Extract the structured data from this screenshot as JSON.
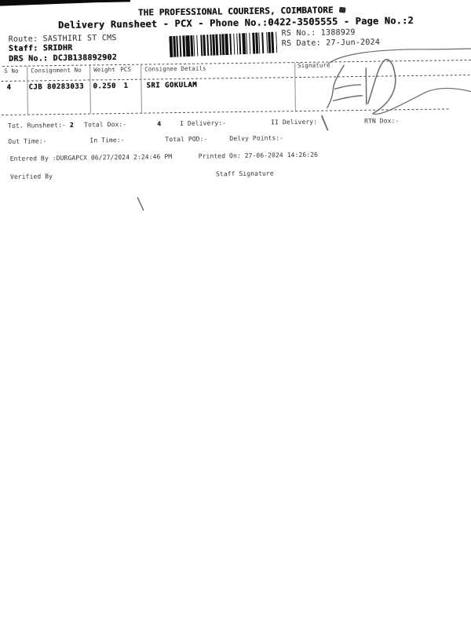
{
  "document": {
    "company": "THE PROFESSIONAL COURIERS, COIMBATORE",
    "subtitle": "Delivery Runsheet - PCX - Phone No.:0422-3505555 - Page No.:2"
  },
  "meta": {
    "route": "Route: SASTHIRI ST CMS",
    "staff": "Staff: SRIDHR",
    "drs_no": "DRS No.: DCJB138892902",
    "rs_no": "RS No.: 1388929",
    "rs_date": "RS Date: 27-Jun-2024"
  },
  "barcode": {
    "pattern": "31211212213121121311221211212211213122121121311212212112131121221"
  },
  "table": {
    "headers": [
      "S No",
      "Consignment No",
      "Weight",
      "PCS",
      "Consignee Details",
      "Signature"
    ],
    "rows": [
      {
        "s_no": "4",
        "consignment_no": "CJB 80283033",
        "weight": "0.250",
        "pcs": "1",
        "consignee": "SRI GOKULAM"
      }
    ]
  },
  "summary": {
    "tot_runsheet_label": "Tot. Runsheet:-",
    "tot_runsheet_value": "2",
    "total_dox_label": "Total Dox:-",
    "total_dox_value": "4",
    "i_delivery": "I Delivery:-",
    "ii_delivery": "II Delivery:",
    "rtn_dox": "RTN Dox:-",
    "out_time": "Out Time:-",
    "in_time": "In Time:-",
    "total_pod": "Total POD:-",
    "delvy_points": "Delvy Points:-"
  },
  "footer": {
    "entered_by": "Entered By :DURGAPCX 06/27/2024 2:24:46 PM",
    "printed_on": "Printed On: 27-06-2024 14:26:26",
    "verified_by": "Verified By",
    "staff_signature": "Staff Signature"
  },
  "colors": {
    "print_ink": "#222222",
    "pen_ink": "#6a6a6a",
    "barcode_ink": "#111111"
  }
}
